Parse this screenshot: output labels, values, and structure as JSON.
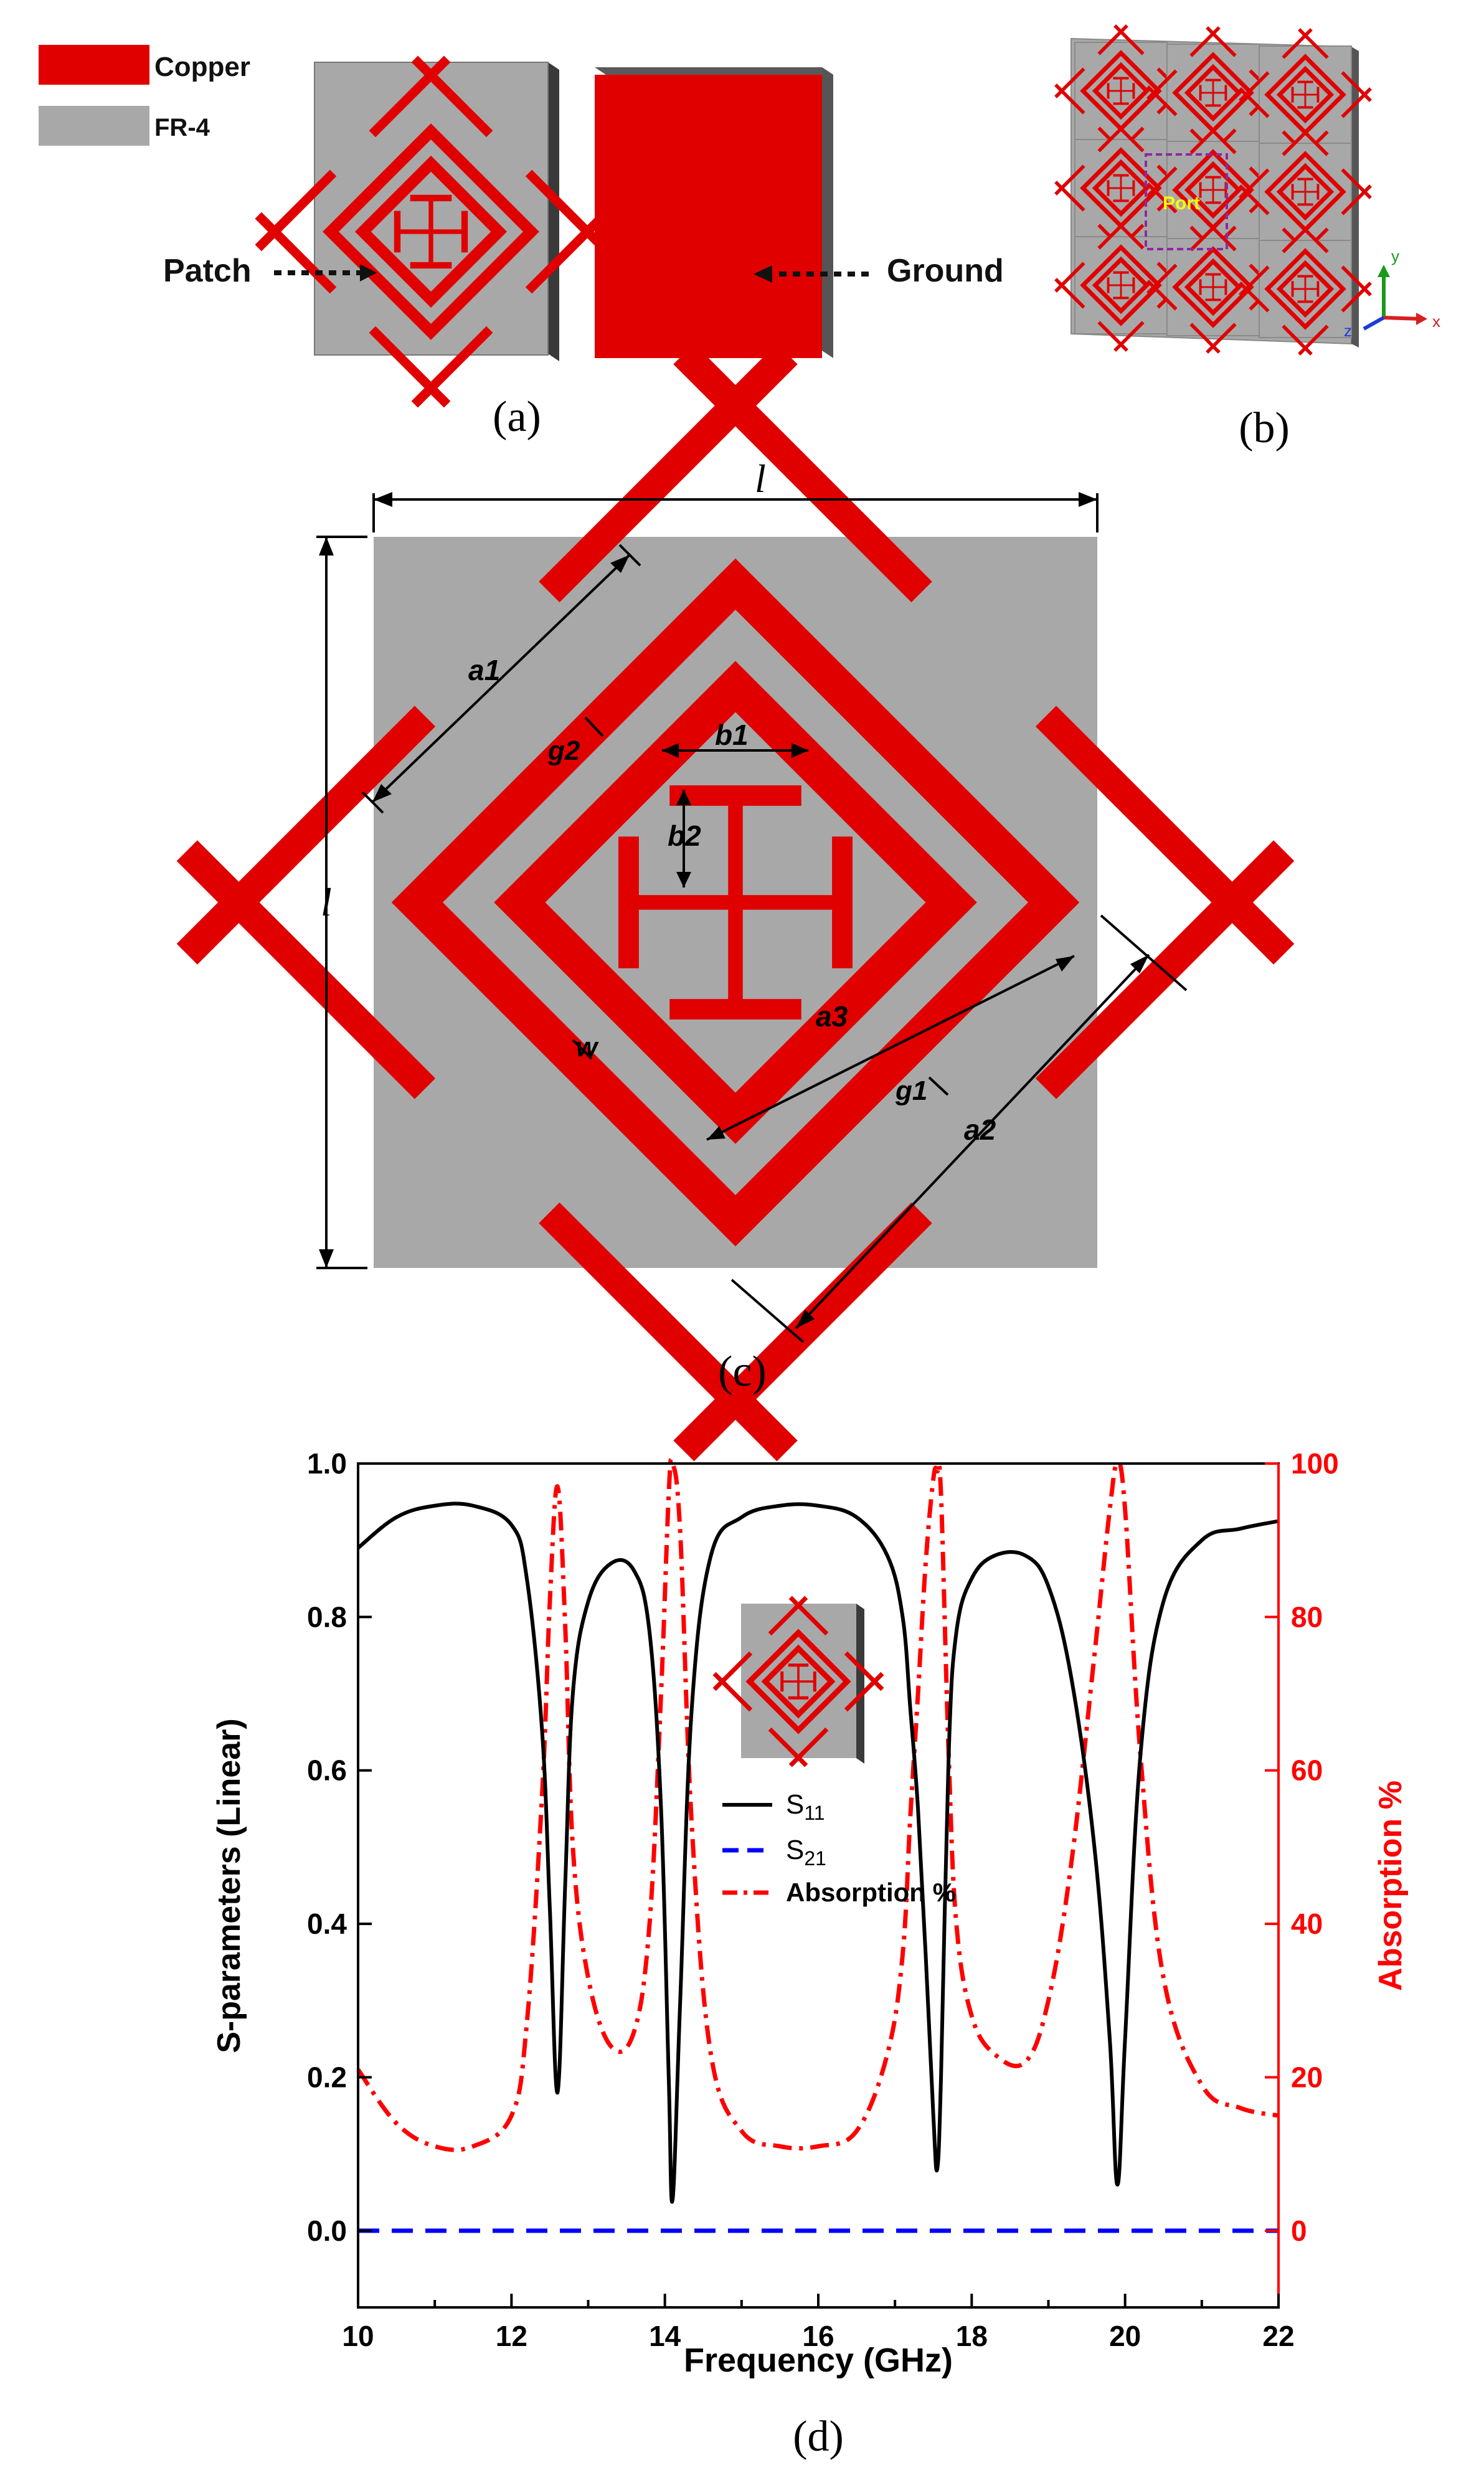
{
  "legend_top": {
    "copper_label": "Copper",
    "fr4_label": "FR-4",
    "copper_color": "#e00000",
    "fr4_color": "#a8a8a8"
  },
  "panel_a": {
    "caption": "(a)",
    "patch_label": "Patch",
    "ground_label": "Ground"
  },
  "panel_b": {
    "caption": "(b)",
    "port_label": "Port",
    "axis_y": "y",
    "axis_x": "x",
    "axis_z": "z"
  },
  "panel_c": {
    "caption": "(c)",
    "dims": {
      "l_top": "l",
      "l_left": "l",
      "a1": "a1",
      "a2": "a2",
      "a3": "a3",
      "b1": "b1",
      "b2": "b2",
      "g1": "g1",
      "g2": "g2",
      "w": "w"
    }
  },
  "panel_d": {
    "caption": "(d)"
  },
  "colors": {
    "copper": "#e00000",
    "substrate": "#a8a8a8",
    "s11": "#000000",
    "s21": "#0000ff",
    "absorption": "#ff0000"
  },
  "chart_data": {
    "type": "line",
    "xlabel": "Frequency (GHz)",
    "ylabel": "S-parameters (Linear)",
    "y2label": "Absorption %",
    "xlim": [
      10,
      22
    ],
    "ylim": [
      -0.1,
      1.0
    ],
    "y2lim": [
      -10,
      100
    ],
    "xticks": [
      "10",
      "12",
      "14",
      "16",
      "18",
      "20",
      "22"
    ],
    "yticks": [
      "0.0",
      "0.2",
      "0.4",
      "0.6",
      "0.8",
      "1.0"
    ],
    "y2ticks": [
      "0",
      "20",
      "40",
      "60",
      "80",
      "100"
    ],
    "legend_position": "center",
    "series": [
      {
        "name": "S11",
        "label_main": "S",
        "label_sub": "11",
        "axis": "left",
        "color": "#000000",
        "style": "solid",
        "x": [
          10.0,
          10.5,
          11.0,
          11.5,
          12.0,
          12.2,
          12.4,
          12.5,
          12.6,
          12.7,
          12.8,
          13.0,
          13.3,
          13.6,
          13.8,
          13.95,
          14.05,
          14.1,
          14.2,
          14.35,
          14.6,
          15.0,
          15.5,
          16.0,
          16.5,
          16.9,
          17.1,
          17.2,
          17.3,
          17.4,
          17.5,
          17.55,
          17.6,
          17.7,
          17.8,
          18.0,
          18.3,
          18.7,
          19.0,
          19.3,
          19.6,
          19.8,
          19.9,
          20.0,
          20.2,
          20.5,
          21.0,
          21.5,
          22.0
        ],
        "y": [
          0.89,
          0.93,
          0.945,
          0.945,
          0.92,
          0.85,
          0.65,
          0.42,
          0.18,
          0.45,
          0.7,
          0.82,
          0.87,
          0.86,
          0.78,
          0.55,
          0.2,
          0.04,
          0.3,
          0.68,
          0.88,
          0.93,
          0.945,
          0.945,
          0.93,
          0.88,
          0.8,
          0.68,
          0.55,
          0.36,
          0.15,
          0.08,
          0.2,
          0.62,
          0.78,
          0.85,
          0.88,
          0.88,
          0.84,
          0.72,
          0.5,
          0.25,
          0.06,
          0.25,
          0.62,
          0.82,
          0.9,
          0.915,
          0.925
        ]
      },
      {
        "name": "S21",
        "label_main": "S",
        "label_sub": "21",
        "axis": "left",
        "color": "#0000ff",
        "style": "dashed",
        "x": [
          10,
          22
        ],
        "y": [
          0.0,
          0.0
        ]
      },
      {
        "name": "Absorption %",
        "label_main": "Absorption %",
        "label_sub": "",
        "axis": "right",
        "color": "#ff0000",
        "style": "dashdot",
        "x": [
          10.0,
          10.5,
          11.0,
          11.5,
          12.0,
          12.2,
          12.4,
          12.5,
          12.6,
          12.7,
          12.8,
          13.0,
          13.3,
          13.6,
          13.8,
          13.95,
          14.05,
          14.1,
          14.2,
          14.35,
          14.6,
          15.0,
          15.5,
          16.0,
          16.5,
          16.9,
          17.1,
          17.2,
          17.3,
          17.4,
          17.5,
          17.55,
          17.6,
          17.7,
          17.8,
          18.0,
          18.3,
          18.7,
          19.0,
          19.3,
          19.6,
          19.8,
          19.9,
          20.0,
          20.2,
          20.5,
          21.0,
          21.5,
          22.0
        ],
        "y": [
          21,
          14,
          11,
          11,
          15,
          27,
          57,
          82,
          97,
          79,
          50,
          33,
          24,
          26,
          40,
          70,
          96,
          100,
          91,
          53,
          23,
          13,
          11,
          11,
          13,
          23,
          36,
          54,
          70,
          87,
          98,
          99,
          96,
          62,
          40,
          28,
          23,
          22,
          30,
          48,
          75,
          94,
          100,
          94,
          62,
          33,
          19,
          16,
          15
        ]
      }
    ]
  }
}
